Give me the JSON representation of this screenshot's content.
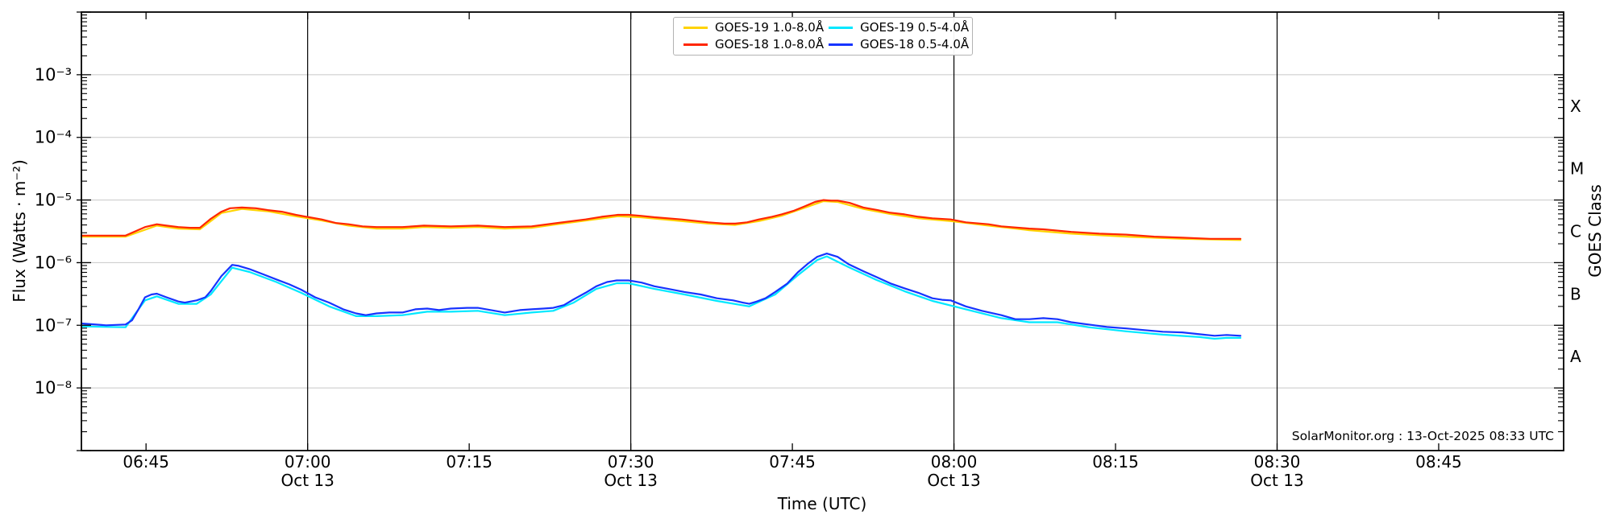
{
  "figure": {
    "xlabel": "Time (UTC)",
    "ylabel": "Flux (Watts · m⁻²)",
    "ylabel_right": "GOES Class",
    "source_text": "SolarMonitor.org : 13-Oct-2025 08:33 UTC"
  },
  "legend": {
    "items": [
      {
        "label": "GOES-19 1.0-8.0Å",
        "color": "#ffd300"
      },
      {
        "label": "GOES-18 1.0-8.0Å",
        "color": "#ff2600"
      },
      {
        "label": "GOES-19 0.5-4.0Å",
        "color": "#00e8ff"
      },
      {
        "label": "GOES-18 0.5-4.0Å",
        "color": "#1634ff"
      }
    ]
  },
  "chart_data": {
    "type": "line",
    "title": "",
    "xlabel": "Time (UTC)",
    "ylabel": "Flux (Watts · m⁻²)",
    "right_axis_label": "GOES Class",
    "grid": "horizontal decade gridlines, vertical lines each half hour",
    "legend_position": "top center",
    "y_axis": {
      "scale": "log",
      "min": 1e-09,
      "max": 0.01,
      "gridline_exponents": [
        -3,
        -4,
        -5,
        -6,
        -7,
        -8
      ],
      "tick_labels": [
        {
          "exponent": -3,
          "label": "10⁻³"
        },
        {
          "exponent": -4,
          "label": "10⁻⁴"
        },
        {
          "exponent": -5,
          "label": "10⁻⁵"
        },
        {
          "exponent": -6,
          "label": "10⁻⁶"
        },
        {
          "exponent": -7,
          "label": "10⁻⁷"
        },
        {
          "exponent": -8,
          "label": "10⁻⁸"
        }
      ]
    },
    "goes_classes": [
      {
        "label": "X",
        "exponent_center": -3.5
      },
      {
        "label": "M",
        "exponent_center": -4.5
      },
      {
        "label": "C",
        "exponent_center": -5.5
      },
      {
        "label": "B",
        "exponent_center": -6.5
      },
      {
        "label": "A",
        "exponent_center": -7.5
      }
    ],
    "x_axis": {
      "unit": "minutes after 00:00 UTC on 13-Oct-2025",
      "start_minutes": 399.0,
      "end_minutes": 536.6,
      "ticks": [
        {
          "minutes": 405,
          "label": "06:45",
          "sub": ""
        },
        {
          "minutes": 420,
          "label": "07:00",
          "sub": "Oct 13"
        },
        {
          "minutes": 435,
          "label": "07:15",
          "sub": ""
        },
        {
          "minutes": 450,
          "label": "07:30",
          "sub": "Oct 13"
        },
        {
          "minutes": 465,
          "label": "07:45",
          "sub": ""
        },
        {
          "minutes": 480,
          "label": "08:00",
          "sub": "Oct 13"
        },
        {
          "minutes": 495,
          "label": "08:15",
          "sub": ""
        },
        {
          "minutes": 510,
          "label": "08:30",
          "sub": "Oct 13"
        },
        {
          "minutes": 525,
          "label": "08:45",
          "sub": ""
        }
      ],
      "vlines_minutes": [
        420,
        450,
        480,
        510
      ]
    },
    "series": [
      {
        "name": "GOES-19 1.0-8.0Å",
        "color": "#ffd300",
        "points": [
          [
            399.0,
            2.6e-06
          ],
          [
            403.1,
            2.6e-06
          ],
          [
            406.0,
            3.9e-06
          ],
          [
            408.0,
            3.5e-06
          ],
          [
            410.0,
            3.4e-06
          ],
          [
            412.0,
            6.2e-06
          ],
          [
            413.9,
            7.2e-06
          ],
          [
            416.3,
            6.6e-06
          ],
          [
            418.9,
            5.5e-06
          ],
          [
            421.3,
            4.7e-06
          ],
          [
            423.8,
            3.9e-06
          ],
          [
            426.4,
            3.5e-06
          ],
          [
            428.8,
            3.5e-06
          ],
          [
            430.8,
            3.7e-06
          ],
          [
            433.3,
            3.6e-06
          ],
          [
            435.8,
            3.7e-06
          ],
          [
            438.3,
            3.5e-06
          ],
          [
            440.8,
            3.6e-06
          ],
          [
            443.2,
            4.1e-06
          ],
          [
            445.8,
            4.7e-06
          ],
          [
            448.8,
            5.5e-06
          ],
          [
            450.9,
            5.3e-06
          ],
          [
            454.7,
            4.6e-06
          ],
          [
            457.2,
            4.2e-06
          ],
          [
            459.7,
            4e-06
          ],
          [
            461.9,
            4.6e-06
          ],
          [
            464.0,
            5.6e-06
          ],
          [
            466.2,
            7.6e-06
          ],
          [
            467.9,
            9.6e-06
          ],
          [
            469.2,
            9.3e-06
          ],
          [
            471.6,
            7.2e-06
          ],
          [
            474.0,
            6e-06
          ],
          [
            476.7,
            5.1e-06
          ],
          [
            479.7,
            4.6e-06
          ],
          [
            483.2,
            3.9e-06
          ],
          [
            487.0,
            3.3e-06
          ],
          [
            490.9,
            2.9e-06
          ],
          [
            496.0,
            2.6e-06
          ],
          [
            501.2,
            2.4e-06
          ],
          [
            506.6,
            2.3e-06
          ]
        ]
      },
      {
        "name": "GOES-19 0.5-4.0Å",
        "color": "#00e8ff",
        "points": [
          [
            399.0,
            9.6e-08
          ],
          [
            403.1,
            9.3e-08
          ],
          [
            404.9,
            2.5e-07
          ],
          [
            406.0,
            2.9e-07
          ],
          [
            408.0,
            2.2e-07
          ],
          [
            409.7,
            2.2e-07
          ],
          [
            411.0,
            3.1e-07
          ],
          [
            413.0,
            8.3e-07
          ],
          [
            414.6,
            7.1e-07
          ],
          [
            417.1,
            4.9e-07
          ],
          [
            419.4,
            3.3e-07
          ],
          [
            422.0,
            2e-07
          ],
          [
            424.5,
            1.4e-07
          ],
          [
            426.4,
            1.4e-07
          ],
          [
            428.8,
            1.45e-07
          ],
          [
            431.1,
            1.65e-07
          ],
          [
            433.3,
            1.65e-07
          ],
          [
            435.8,
            1.7e-07
          ],
          [
            438.3,
            1.45e-07
          ],
          [
            440.8,
            1.6e-07
          ],
          [
            442.8,
            1.7e-07
          ],
          [
            444.7,
            2.3e-07
          ],
          [
            446.8,
            3.8e-07
          ],
          [
            448.7,
            4.7e-07
          ],
          [
            449.8,
            4.7e-07
          ],
          [
            452.2,
            3.8e-07
          ],
          [
            455.0,
            3.1e-07
          ],
          [
            458.0,
            2.45e-07
          ],
          [
            461.0,
            2e-07
          ],
          [
            463.4,
            3.1e-07
          ],
          [
            465.5,
            6.3e-07
          ],
          [
            467.3,
            1.1e-06
          ],
          [
            468.2,
            1.26e-06
          ],
          [
            470.2,
            8.5e-07
          ],
          [
            472.8,
            5.3e-07
          ],
          [
            475.4,
            3.5e-07
          ],
          [
            478.0,
            2.45e-07
          ],
          [
            481.1,
            1.8e-07
          ],
          [
            484.4,
            1.3e-07
          ],
          [
            487.0,
            1.12e-07
          ],
          [
            489.6,
            1.12e-07
          ],
          [
            492.5,
            9.3e-08
          ],
          [
            496.0,
            8e-08
          ],
          [
            499.4,
            7.1e-08
          ],
          [
            502.8,
            6.5e-08
          ],
          [
            504.2,
            6.1e-08
          ],
          [
            505.3,
            6.3e-08
          ],
          [
            506.6,
            6.3e-08
          ]
        ]
      },
      {
        "name": "GOES-18 1.0-8.0Å",
        "color": "#ff2600",
        "points": [
          [
            399.0,
            2.7e-06
          ],
          [
            401.3,
            2.7e-06
          ],
          [
            403.1,
            2.7e-06
          ],
          [
            404.9,
            3.7e-06
          ],
          [
            406.0,
            4.1e-06
          ],
          [
            406.9,
            3.9e-06
          ],
          [
            408.0,
            3.7e-06
          ],
          [
            409.1,
            3.6e-06
          ],
          [
            410.0,
            3.6e-06
          ],
          [
            411.0,
            5e-06
          ],
          [
            412.0,
            6.5e-06
          ],
          [
            412.8,
            7.4e-06
          ],
          [
            413.9,
            7.6e-06
          ],
          [
            415.2,
            7.4e-06
          ],
          [
            416.3,
            6.9e-06
          ],
          [
            417.6,
            6.5e-06
          ],
          [
            418.9,
            5.8e-06
          ],
          [
            419.9,
            5.4e-06
          ],
          [
            421.3,
            4.9e-06
          ],
          [
            422.6,
            4.3e-06
          ],
          [
            423.8,
            4.1e-06
          ],
          [
            425.1,
            3.8e-06
          ],
          [
            426.4,
            3.7e-06
          ],
          [
            428.8,
            3.7e-06
          ],
          [
            430.8,
            3.9e-06
          ],
          [
            433.3,
            3.8e-06
          ],
          [
            435.8,
            3.9e-06
          ],
          [
            438.3,
            3.7e-06
          ],
          [
            440.8,
            3.8e-06
          ],
          [
            443.2,
            4.3e-06
          ],
          [
            445.8,
            4.9e-06
          ],
          [
            447.3,
            5.4e-06
          ],
          [
            448.8,
            5.8e-06
          ],
          [
            449.8,
            5.8e-06
          ],
          [
            450.9,
            5.6e-06
          ],
          [
            452.2,
            5.3e-06
          ],
          [
            454.7,
            4.9e-06
          ],
          [
            457.2,
            4.4e-06
          ],
          [
            458.7,
            4.2e-06
          ],
          [
            459.7,
            4.2e-06
          ],
          [
            460.8,
            4.4e-06
          ],
          [
            461.9,
            4.9e-06
          ],
          [
            463.1,
            5.4e-06
          ],
          [
            464.0,
            5.9e-06
          ],
          [
            465.1,
            6.7e-06
          ],
          [
            466.2,
            8e-06
          ],
          [
            467.1,
            9.3e-06
          ],
          [
            467.9,
            1e-05
          ],
          [
            468.6,
            9.8e-06
          ],
          [
            469.2,
            9.8e-06
          ],
          [
            470.3,
            9e-06
          ],
          [
            471.6,
            7.6e-06
          ],
          [
            472.9,
            6.9e-06
          ],
          [
            474.0,
            6.3e-06
          ],
          [
            475.4,
            5.9e-06
          ],
          [
            476.7,
            5.4e-06
          ],
          [
            478.0,
            5.1e-06
          ],
          [
            479.7,
            4.9e-06
          ],
          [
            481.1,
            4.4e-06
          ],
          [
            483.2,
            4.1e-06
          ],
          [
            484.4,
            3.8e-06
          ],
          [
            487.0,
            3.5e-06
          ],
          [
            488.3,
            3.4e-06
          ],
          [
            490.9,
            3.1e-06
          ],
          [
            493.5,
            2.9e-06
          ],
          [
            496.0,
            2.8e-06
          ],
          [
            498.6,
            2.6e-06
          ],
          [
            501.2,
            2.5e-06
          ],
          [
            503.8,
            2.4e-06
          ],
          [
            506.6,
            2.4e-06
          ]
        ]
      },
      {
        "name": "GOES-18 0.5-4.0Å",
        "color": "#1634ff",
        "points": [
          [
            399.0,
            1.07e-07
          ],
          [
            401.3,
            1e-07
          ],
          [
            403.1,
            1.03e-07
          ],
          [
            403.7,
            1.2e-07
          ],
          [
            404.3,
            1.8e-07
          ],
          [
            404.9,
            2.8e-07
          ],
          [
            405.5,
            3.1e-07
          ],
          [
            406.0,
            3.2e-07
          ],
          [
            406.9,
            2.8e-07
          ],
          [
            408.0,
            2.4e-07
          ],
          [
            408.6,
            2.3e-07
          ],
          [
            409.7,
            2.5e-07
          ],
          [
            410.5,
            2.8e-07
          ],
          [
            411.0,
            3.5e-07
          ],
          [
            412.0,
            6.1e-07
          ],
          [
            413.0,
            9.2e-07
          ],
          [
            413.6,
            8.9e-07
          ],
          [
            414.6,
            7.9e-07
          ],
          [
            415.8,
            6.6e-07
          ],
          [
            417.1,
            5.4e-07
          ],
          [
            418.3,
            4.5e-07
          ],
          [
            419.4,
            3.7e-07
          ],
          [
            420.7,
            2.8e-07
          ],
          [
            422.0,
            2.3e-07
          ],
          [
            423.3,
            1.8e-07
          ],
          [
            424.5,
            1.55e-07
          ],
          [
            425.4,
            1.45e-07
          ],
          [
            426.4,
            1.55e-07
          ],
          [
            427.6,
            1.6e-07
          ],
          [
            428.8,
            1.6e-07
          ],
          [
            430.0,
            1.8e-07
          ],
          [
            431.1,
            1.85e-07
          ],
          [
            432.2,
            1.75e-07
          ],
          [
            433.3,
            1.85e-07
          ],
          [
            434.8,
            1.9e-07
          ],
          [
            435.8,
            1.9e-07
          ],
          [
            437.4,
            1.7e-07
          ],
          [
            438.3,
            1.6e-07
          ],
          [
            439.7,
            1.75e-07
          ],
          [
            440.8,
            1.8e-07
          ],
          [
            441.9,
            1.85e-07
          ],
          [
            442.8,
            1.9e-07
          ],
          [
            443.8,
            2.1e-07
          ],
          [
            444.7,
            2.6e-07
          ],
          [
            445.8,
            3.3e-07
          ],
          [
            446.8,
            4.2e-07
          ],
          [
            447.8,
            4.9e-07
          ],
          [
            448.7,
            5.2e-07
          ],
          [
            449.8,
            5.2e-07
          ],
          [
            451.0,
            4.8e-07
          ],
          [
            452.2,
            4.2e-07
          ],
          [
            453.5,
            3.8e-07
          ],
          [
            455.0,
            3.4e-07
          ],
          [
            456.5,
            3.1e-07
          ],
          [
            458.0,
            2.7e-07
          ],
          [
            459.5,
            2.5e-07
          ],
          [
            460.4,
            2.3e-07
          ],
          [
            461.0,
            2.2e-07
          ],
          [
            461.7,
            2.4e-07
          ],
          [
            462.5,
            2.7e-07
          ],
          [
            463.4,
            3.4e-07
          ],
          [
            464.5,
            4.6e-07
          ],
          [
            465.5,
            7e-07
          ],
          [
            466.5,
            9.8e-07
          ],
          [
            467.3,
            1.24e-06
          ],
          [
            468.2,
            1.4e-06
          ],
          [
            469.2,
            1.24e-06
          ],
          [
            470.2,
            9.5e-07
          ],
          [
            471.6,
            7.3e-07
          ],
          [
            472.8,
            5.9e-07
          ],
          [
            474.2,
            4.6e-07
          ],
          [
            475.4,
            3.9e-07
          ],
          [
            476.7,
            3.3e-07
          ],
          [
            478.0,
            2.7e-07
          ],
          [
            478.9,
            2.55e-07
          ],
          [
            479.7,
            2.5e-07
          ],
          [
            481.1,
            2e-07
          ],
          [
            482.6,
            1.7e-07
          ],
          [
            484.4,
            1.45e-07
          ],
          [
            485.7,
            1.25e-07
          ],
          [
            487.0,
            1.25e-07
          ],
          [
            488.3,
            1.3e-07
          ],
          [
            489.6,
            1.25e-07
          ],
          [
            490.9,
            1.12e-07
          ],
          [
            492.5,
            1.03e-07
          ],
          [
            494.2,
            9.4e-08
          ],
          [
            496.0,
            8.9e-08
          ],
          [
            497.6,
            8.4e-08
          ],
          [
            499.4,
            7.9e-08
          ],
          [
            501.2,
            7.7e-08
          ],
          [
            502.8,
            7.2e-08
          ],
          [
            504.2,
            6.8e-08
          ],
          [
            505.3,
            7e-08
          ],
          [
            506.6,
            6.8e-08
          ]
        ]
      }
    ]
  }
}
